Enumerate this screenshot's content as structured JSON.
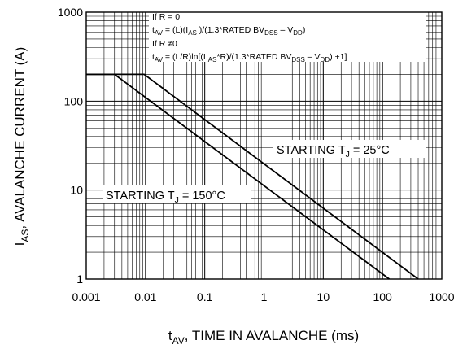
{
  "chart_data": {
    "type": "line",
    "xscale": "log",
    "yscale": "log",
    "xlim": [
      0.001,
      1000
    ],
    "ylim": [
      1,
      1000
    ],
    "grid": true,
    "xticks": [
      "0.001",
      "0.01",
      "0.1",
      "1",
      "10",
      "100",
      "1000"
    ],
    "yticks": [
      "1000",
      "100",
      "10",
      "1"
    ],
    "xlabel": {
      "main": "t",
      "sub": "AV",
      "rest": ", TIME IN AVALANCHE (ms)"
    },
    "ylabel": {
      "main": "I",
      "sub": "AS",
      "rest": ", AVALANCHE CURRENT (A)"
    },
    "notes": {
      "line1": "If R = 0",
      "line2": {
        "a": "t",
        "a_sub": "AV",
        "b": " = (L)(I",
        "b_sub": "AS",
        "c": " )/(1.3*RATED BV",
        "c_sub": "DSS",
        "d": " – V",
        "d_sub": "DD",
        "e": ")"
      },
      "line3": "If R  ≠0",
      "line4": {
        "a": "t",
        "a_sub": "AV",
        "b": " = (L/R)ln[(I ",
        "b_sub": "AS",
        "c": "*R)/(1.3*RATED BV",
        "c_sub": "DSS",
        "d": " – V",
        "d_sub": "DD",
        "e": ") +1]"
      }
    },
    "annotations": {
      "a25": {
        "pre": "STARTING T",
        "sub": "J",
        "post": " = 25°C"
      },
      "a150": {
        "pre": "STARTING T",
        "sub": "J",
        "post": " = 150°C"
      }
    },
    "series": [
      {
        "x": [
          0.001,
          0.0095,
          400
        ],
        "y": [
          200,
          200,
          1
        ]
      },
      {
        "x": [
          0.001,
          0.003,
          130
        ],
        "y": [
          200,
          200,
          1
        ]
      }
    ]
  }
}
